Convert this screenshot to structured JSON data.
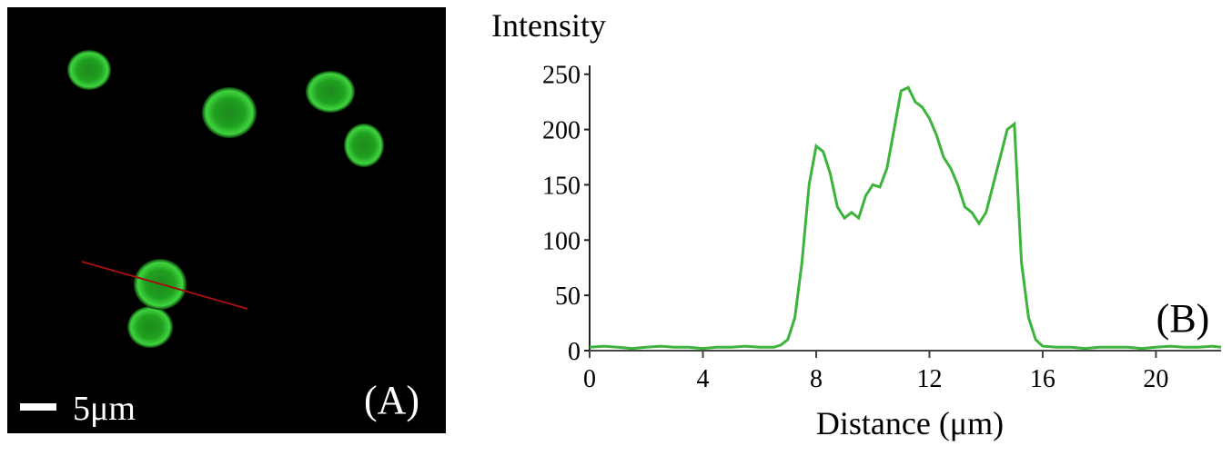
{
  "panel_a": {
    "scale_label": "5μm",
    "label": "(A)"
  },
  "chart_data": {
    "type": "line",
    "y_label": "Intensity",
    "x_label": "Distance (μm)",
    "panel_label": "(B)",
    "x": [
      0,
      0.5,
      1,
      1.5,
      2,
      2.5,
      3,
      3.5,
      4,
      4.5,
      5,
      5.5,
      6,
      6.5,
      6.75,
      7,
      7.25,
      7.5,
      7.75,
      8,
      8.25,
      8.5,
      8.75,
      9,
      9.25,
      9.5,
      9.75,
      10,
      10.25,
      10.5,
      10.75,
      11,
      11.25,
      11.5,
      11.75,
      12,
      12.25,
      12.5,
      12.75,
      13,
      13.25,
      13.5,
      13.75,
      14,
      14.25,
      14.5,
      14.75,
      15,
      15.25,
      15.5,
      15.75,
      16,
      16.5,
      17,
      17.5,
      18,
      18.5,
      19,
      19.5,
      20,
      20.5,
      21,
      21.5,
      22,
      22.3
    ],
    "series": [
      {
        "name": "Intensity",
        "color": "#3cb43c",
        "values": [
          3,
          4,
          3,
          2,
          3,
          4,
          3,
          3,
          2,
          3,
          3,
          4,
          3,
          3,
          5,
          10,
          30,
          80,
          150,
          185,
          180,
          160,
          130,
          120,
          125,
          120,
          140,
          150,
          148,
          165,
          200,
          235,
          238,
          225,
          220,
          210,
          195,
          175,
          165,
          150,
          130,
          125,
          115,
          125,
          150,
          175,
          200,
          205,
          80,
          30,
          10,
          4,
          3,
          3,
          2,
          3,
          3,
          3,
          2,
          3,
          4,
          3,
          3,
          4,
          3
        ]
      }
    ],
    "xlim": [
      0,
      22.3
    ],
    "ylim": [
      0,
      258
    ],
    "xticks": [
      0,
      4,
      8,
      12,
      16,
      20
    ],
    "yticks": [
      0,
      50,
      100,
      150,
      200,
      250
    ]
  }
}
